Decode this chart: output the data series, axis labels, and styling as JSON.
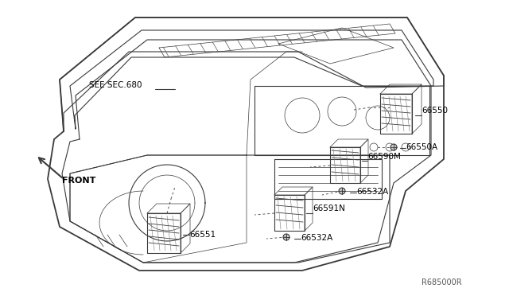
{
  "bg_color": "#ffffff",
  "line_color": "#3a3a3a",
  "label_color": "#000000",
  "figure_width": 6.4,
  "figure_height": 3.72,
  "dpi": 100,
  "diagram_ref": "R685000R",
  "labels": {
    "see_sec": "SEE SEC.680",
    "front": "FRONT",
    "p66550": "66550",
    "p66550A": "66550A",
    "p66590M": "66590M",
    "p66532A_top": "66532A",
    "p66591N": "66591N",
    "p66532A_bot": "66532A",
    "p66551": "66551"
  }
}
